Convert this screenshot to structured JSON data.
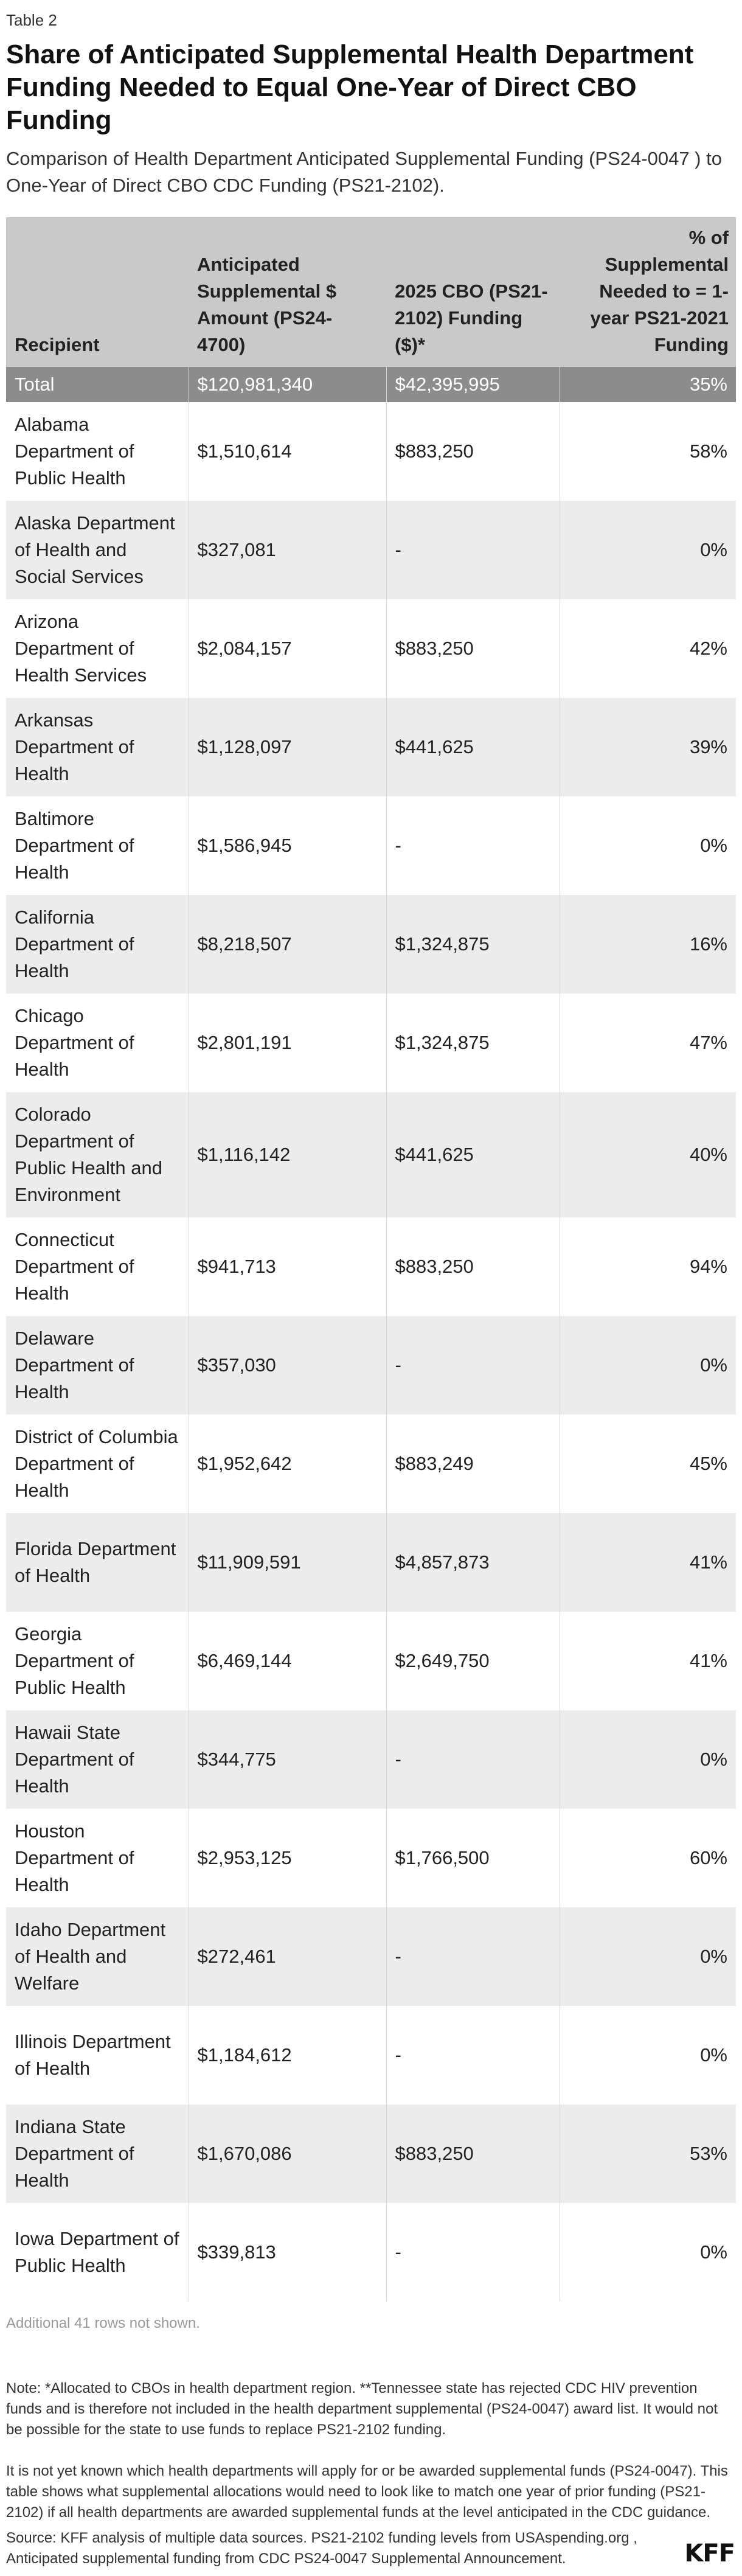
{
  "table_number": "Table 2",
  "title": "Share of Anticipated Supplemental Health Department Funding Needed to Equal One-Year of Direct CBO Funding",
  "subtitle": "Comparison of Health Department Anticipated Supplemental Funding (PS24-0047 ) to One-Year of Direct CBO CDC Funding (PS21-2102).",
  "headers": {
    "recipient": "Recipient",
    "supplemental": "Anticipated Supplemental $ Amount (PS24-4700)",
    "cbo": "2025 CBO (PS21-2102) Funding ($)*",
    "pct": "% of Supplemental Needed to = 1-year PS21-2021 Funding"
  },
  "total": {
    "recipient": "Total",
    "supplemental": "$120,981,340",
    "cbo": "$42,395,995",
    "pct": "35%"
  },
  "rows": [
    {
      "recipient": "Alabama Department of Public Health",
      "supplemental": "$1,510,614",
      "cbo": "$883,250",
      "pct": "58%"
    },
    {
      "recipient": "Alaska Department of Health and Social Services",
      "supplemental": "$327,081",
      "cbo": "-",
      "pct": "0%"
    },
    {
      "recipient": "Arizona Department of Health Services",
      "supplemental": "$2,084,157",
      "cbo": "$883,250",
      "pct": "42%"
    },
    {
      "recipient": "Arkansas Department of Health",
      "supplemental": "$1,128,097",
      "cbo": "$441,625",
      "pct": "39%"
    },
    {
      "recipient": "Baltimore Department of Health",
      "supplemental": "$1,586,945",
      "cbo": "-",
      "pct": "0%"
    },
    {
      "recipient": "California Department of Health",
      "supplemental": "$8,218,507",
      "cbo": "$1,324,875",
      "pct": "16%"
    },
    {
      "recipient": "Chicago Department of Health",
      "supplemental": "$2,801,191",
      "cbo": "$1,324,875",
      "pct": "47%"
    },
    {
      "recipient": "Colorado Department of Public Health and Environment",
      "supplemental": "$1,116,142",
      "cbo": "$441,625",
      "pct": "40%"
    },
    {
      "recipient": "Connecticut Department of Health",
      "supplemental": "$941,713",
      "cbo": "$883,250",
      "pct": "94%"
    },
    {
      "recipient": "Delaware Department of Health",
      "supplemental": "$357,030",
      "cbo": "-",
      "pct": "0%"
    },
    {
      "recipient": "District of Columbia Department of Health",
      "supplemental": "$1,952,642",
      "cbo": "$883,249",
      "pct": "45%"
    },
    {
      "recipient": "Florida Department of Health",
      "supplemental": "$11,909,591",
      "cbo": "$4,857,873",
      "pct": "41%"
    },
    {
      "recipient": "Georgia Department of Public Health",
      "supplemental": "$6,469,144",
      "cbo": "$2,649,750",
      "pct": "41%"
    },
    {
      "recipient": "Hawaii State Department of Health",
      "supplemental": "$344,775",
      "cbo": "-",
      "pct": "0%"
    },
    {
      "recipient": "Houston Department of Health",
      "supplemental": "$2,953,125",
      "cbo": "$1,766,500",
      "pct": "60%"
    },
    {
      "recipient": "Idaho Department of Health and Welfare",
      "supplemental": "$272,461",
      "cbo": "-",
      "pct": "0%"
    },
    {
      "recipient": "Illinois Department of Health",
      "supplemental": "$1,184,612",
      "cbo": "-",
      "pct": "0%"
    },
    {
      "recipient": "Indiana State Department of Health",
      "supplemental": "$1,670,086",
      "cbo": "$883,250",
      "pct": "53%"
    },
    {
      "recipient": "Iowa Department of Public Health",
      "supplemental": "$339,813",
      "cbo": "-",
      "pct": "0%"
    }
  ],
  "more_rows": "Additional 41 rows not shown.",
  "note1": "Note: *Allocated to CBOs in health department region. **Tennessee state has rejected CDC HIV prevention funds and is therefore not included in the health department supplemental (PS24-0047) award list. It would not be possible for the state to use funds to replace PS21-2102 funding.",
  "note2": "It is not yet known which health departments will apply for or be awarded supplemental funds (PS24-0047). This table shows what supplemental allocations would need to look like to match one year of prior funding (PS21-2102) if all health departments are awarded supplemental funds at the level anticipated in the CDC guidance.",
  "source": "Source: KFF analysis of multiple data sources. PS21-2102 funding levels from USAspending.org , Anticipated supplemental funding from CDC PS24-0047 Supplemental Announcement.",
  "logo": "KFF"
}
